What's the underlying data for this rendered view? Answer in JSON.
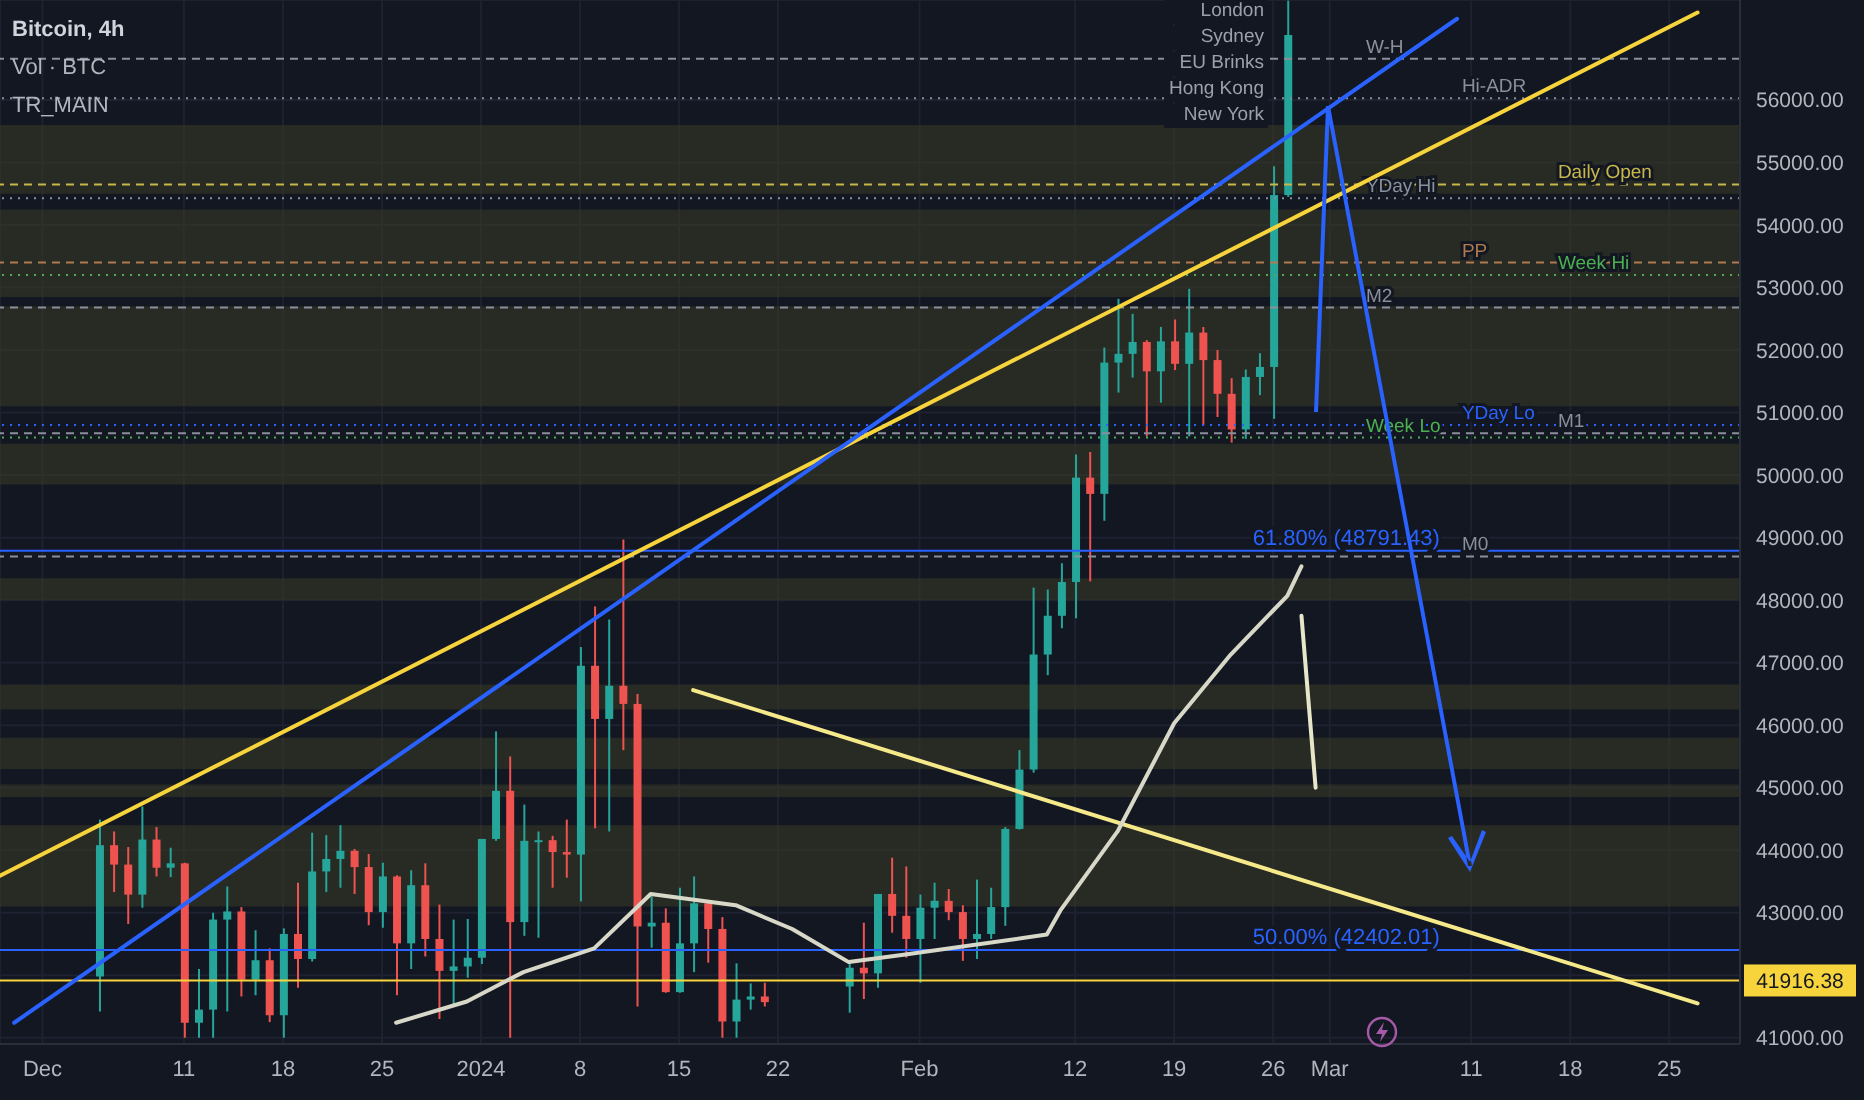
{
  "chart_data": {
    "type": "candlestick",
    "title": "Bitcoin, 4h",
    "annotations": [
      "Vol · BTC",
      "TR_MAIN",
      "London",
      "Sydney",
      "EU Brinks",
      "Hong Kong",
      "New York"
    ],
    "x": [
      "2023-12-05",
      "2023-12-06",
      "2023-12-07",
      "2023-12-08",
      "2023-12-09",
      "2023-12-10",
      "2023-12-11",
      "2023-12-12",
      "2023-12-13",
      "2023-12-14",
      "2023-12-15",
      "2023-12-16",
      "2023-12-17",
      "2023-12-18",
      "2023-12-19",
      "2023-12-20",
      "2023-12-21",
      "2023-12-22",
      "2023-12-23",
      "2023-12-24",
      "2023-12-25",
      "2023-12-26",
      "2023-12-27",
      "2023-12-28",
      "2023-12-29",
      "2023-12-30",
      "2023-12-31",
      "2024-01-01",
      "2024-01-02",
      "2024-01-03",
      "2024-01-04",
      "2024-01-05",
      "2024-01-06",
      "2024-01-07",
      "2024-01-08",
      "2024-01-09",
      "2024-01-10",
      "2024-01-11",
      "2024-01-12",
      "2024-01-13",
      "2024-01-14",
      "2024-01-15",
      "2024-01-16",
      "2024-01-17",
      "2024-01-18",
      "2024-01-19",
      "2024-01-20",
      "2024-01-21",
      "2024-01-27",
      "2024-01-28",
      "2024-01-29",
      "2024-01-30",
      "2024-01-31",
      "2024-02-01",
      "2024-02-02",
      "2024-02-03",
      "2024-02-04",
      "2024-02-05",
      "2024-02-06",
      "2024-02-07",
      "2024-02-08",
      "2024-02-09",
      "2024-02-10",
      "2024-02-11",
      "2024-02-12",
      "2024-02-13",
      "2024-02-14",
      "2024-02-15",
      "2024-02-16",
      "2024-02-17",
      "2024-02-18",
      "2024-02-19",
      "2024-02-20",
      "2024-02-21",
      "2024-02-22",
      "2024-02-23",
      "2024-02-24",
      "2024-02-25",
      "2024-02-26",
      "2024-02-27"
    ],
    "ohlc": [
      [
        41980,
        44490,
        41420,
        44080
      ],
      [
        44080,
        44300,
        43330,
        43770
      ],
      [
        43770,
        44050,
        42820,
        43290
      ],
      [
        43290,
        44700,
        43080,
        44170
      ],
      [
        44170,
        44370,
        43580,
        43720
      ],
      [
        43720,
        44040,
        43570,
        43790
      ],
      [
        43790,
        43800,
        41000,
        41240
      ],
      [
        41240,
        42100,
        41000,
        41450
      ],
      [
        41450,
        43000,
        41000,
        42890
      ],
      [
        42890,
        43420,
        41420,
        43020
      ],
      [
        43020,
        43090,
        41660,
        41930
      ],
      [
        41930,
        42720,
        41680,
        42240
      ],
      [
        42240,
        42430,
        41250,
        41360
      ],
      [
        41360,
        42750,
        41000,
        42660
      ],
      [
        42660,
        43480,
        41800,
        42260
      ],
      [
        42260,
        44280,
        42220,
        43660
      ],
      [
        43660,
        44240,
        43330,
        43860
      ],
      [
        43860,
        44400,
        43400,
        43990
      ],
      [
        43990,
        44020,
        43300,
        43730
      ],
      [
        43730,
        43940,
        42800,
        43010
      ],
      [
        43010,
        43800,
        42760,
        43580
      ],
      [
        43580,
        43600,
        41680,
        42510
      ],
      [
        42510,
        43680,
        42100,
        43440
      ],
      [
        43440,
        43790,
        42300,
        42580
      ],
      [
        42580,
        43130,
        41300,
        42070
      ],
      [
        42070,
        42890,
        41520,
        42140
      ],
      [
        42140,
        42900,
        41960,
        42280
      ],
      [
        42280,
        44180,
        42180,
        44180
      ],
      [
        44180,
        45900,
        44150,
        44950
      ],
      [
        44950,
        45500,
        41000,
        42850
      ],
      [
        42850,
        44730,
        42630,
        44150
      ],
      [
        44150,
        44300,
        42600,
        44160
      ],
      [
        44160,
        44230,
        43400,
        43970
      ],
      [
        43970,
        44490,
        43560,
        43930
      ],
      [
        43930,
        47250,
        43180,
        46950
      ],
      [
        46950,
        47900,
        44350,
        46100
      ],
      [
        46100,
        47690,
        44300,
        46630
      ],
      [
        46630,
        48970,
        45600,
        46340
      ],
      [
        46340,
        46500,
        41500,
        42780
      ],
      [
        42780,
        43260,
        42440,
        42840
      ],
      [
        42840,
        43070,
        41720,
        41730
      ],
      [
        41730,
        43400,
        41720,
        42510
      ],
      [
        42510,
        43580,
        42050,
        43150
      ],
      [
        43150,
        43200,
        42200,
        42740
      ],
      [
        42740,
        42930,
        41000,
        41260
      ],
      [
        41260,
        42190,
        41000,
        41610
      ],
      [
        41610,
        41870,
        41450,
        41660
      ],
      [
        41660,
        41880,
        41500,
        41570
      ],
      [
        41820,
        42200,
        41400,
        42120
      ],
      [
        42120,
        42840,
        41620,
        42030
      ],
      [
        42030,
        43300,
        41800,
        43300
      ],
      [
        43300,
        43880,
        42680,
        42950
      ],
      [
        42950,
        43740,
        42280,
        42580
      ],
      [
        42580,
        43290,
        41880,
        43080
      ],
      [
        43080,
        43480,
        42580,
        43190
      ],
      [
        43190,
        43380,
        42880,
        43010
      ],
      [
        43010,
        43120,
        42230,
        42580
      ],
      [
        42580,
        43530,
        42260,
        42660
      ],
      [
        42660,
        43400,
        42580,
        43090
      ],
      [
        43090,
        44370,
        42790,
        44340
      ],
      [
        44340,
        45600,
        44330,
        45290
      ],
      [
        45290,
        48200,
        45240,
        47130
      ],
      [
        47130,
        48170,
        46800,
        47750
      ],
      [
        47750,
        48590,
        47550,
        48290
      ],
      [
        48290,
        50330,
        47710,
        49960
      ],
      [
        49960,
        50370,
        48300,
        49700
      ],
      [
        49700,
        52040,
        49270,
        51800
      ],
      [
        51800,
        52820,
        51320,
        51940
      ],
      [
        51940,
        52580,
        51560,
        52130
      ],
      [
        52130,
        52160,
        50620,
        51660
      ],
      [
        51660,
        52370,
        51160,
        52140
      ],
      [
        52140,
        52490,
        51680,
        51780
      ],
      [
        51780,
        52980,
        50620,
        52280
      ],
      [
        52280,
        52370,
        50800,
        51840
      ],
      [
        51840,
        52000,
        50930,
        51300
      ],
      [
        51300,
        51550,
        50520,
        50730
      ],
      [
        50730,
        51690,
        50580,
        51570
      ],
      [
        51570,
        51950,
        51280,
        51730
      ],
      [
        51730,
        54940,
        50900,
        54480
      ],
      [
        54480,
        57590,
        54450,
        57040
      ]
    ],
    "colors": [
      "#26a69a",
      "#ef5350",
      "#ef5350",
      "#26a69a",
      "#ef5350",
      "#26a69a",
      "#ef5350",
      "#26a69a",
      "#26a69a",
      "#26a69a",
      "#ef5350",
      "#26a69a",
      "#ef5350",
      "#26a69a",
      "#ef5350",
      "#26a69a",
      "#26a69a",
      "#26a69a",
      "#ef5350",
      "#ef5350",
      "#26a69a",
      "#ef5350",
      "#26a69a",
      "#ef5350",
      "#ef5350",
      "#26a69a",
      "#26a69a",
      "#26a69a",
      "#26a69a",
      "#ef5350",
      "#26a69a",
      "#26a69a",
      "#ef5350",
      "#ef5350",
      "#26a69a",
      "#ef5350",
      "#26a69a",
      "#ef5350",
      "#ef5350",
      "#26a69a",
      "#ef5350",
      "#26a69a",
      "#26a69a",
      "#ef5350",
      "#ef5350",
      "#26a69a",
      "#26a69a",
      "#ef5350",
      "#26a69a",
      "#ef5350",
      "#26a69a",
      "#ef5350",
      "#ef5350",
      "#26a69a",
      "#26a69a",
      "#ef5350",
      "#ef5350",
      "#26a69a",
      "#26a69a",
      "#26a69a",
      "#26a69a",
      "#26a69a",
      "#26a69a",
      "#26a69a",
      "#26a69a",
      "#ef5350",
      "#26a69a",
      "#26a69a",
      "#26a69a",
      "#ef5350",
      "#26a69a",
      "#ef5350",
      "#26a69a",
      "#ef5350",
      "#ef5350",
      "#ef5350",
      "#26a69a",
      "#26a69a",
      "#26a69a",
      "#26a69a"
    ],
    "series": [
      {
        "type": "line",
        "color": "#f7d43c",
        "x": [
          "2023-11-28",
          "2024-03-27"
        ],
        "values": [
          43590,
          57400
        ]
      },
      {
        "type": "line",
        "color": "#2962ff",
        "x": [
          "2023-11-29",
          "2024-03-10"
        ],
        "values": [
          41240,
          57300
        ]
      },
      {
        "type": "line",
        "color": "#f5e98a",
        "x": [
          "2024-01-16",
          "2024-03-27"
        ],
        "values": [
          46560,
          41550
        ]
      },
      {
        "type": "line",
        "color": "#e8e6c8",
        "x": [
          "2024-02-28",
          "2024-02-29"
        ],
        "values": [
          47750,
          45000
        ]
      },
      {
        "type": "line",
        "color": "#d8d8c8",
        "x": [
          "2023-12-26",
          "2023-12-31",
          "2024-01-04",
          "2024-01-09",
          "2024-01-13",
          "2024-01-19",
          "2024-01-23",
          "2024-01-27",
          "2024-01-31",
          "2024-02-10",
          "2024-02-11",
          "2024-02-15",
          "2024-02-19",
          "2024-02-23",
          "2024-02-27",
          "2024-02-28"
        ],
        "values": [
          41240,
          41580,
          42050,
          42430,
          43300,
          43120,
          42740,
          42210,
          42330,
          42650,
          43050,
          44300,
          46030,
          47130,
          48070,
          48540
        ]
      }
    ],
    "ref_lines": [
      {
        "axis": "y",
        "value": 41916.38,
        "label": "41916.38",
        "color": "#f7d43c",
        "line_style": "solid"
      },
      {
        "axis": "y",
        "value": 48791.43,
        "label": "61.80% (48791.43)",
        "color": "#2962ff",
        "line_style": "solid"
      },
      {
        "axis": "y",
        "value": 42402.01,
        "label": "50.00% (42402.01)",
        "color": "#2962ff",
        "line_style": "solid"
      },
      {
        "axis": "y",
        "value": 56660,
        "label": "W-H",
        "color": "#8a8f9c",
        "line_style": "dashed"
      },
      {
        "axis": "y",
        "value": 56030,
        "label": "Hi-ADR",
        "color": "#8a8f9c",
        "line_style": "dotted"
      },
      {
        "axis": "y",
        "value": 54650,
        "label": "Daily Open",
        "color": "#c8b84a",
        "line_style": "dashed"
      },
      {
        "axis": "y",
        "value": 54430,
        "label": "YDay Hi",
        "color": "#8a8f9c",
        "line_style": "dotted"
      },
      {
        "axis": "y",
        "value": 53400,
        "label": "PP",
        "color": "#b07a50",
        "line_style": "dashed"
      },
      {
        "axis": "y",
        "value": 53200,
        "label": "Week Hi",
        "color": "#4caf50",
        "line_style": "dotted"
      },
      {
        "axis": "y",
        "value": 52680,
        "label": "M2",
        "color": "#8a8f9c",
        "line_style": "dashed"
      },
      {
        "axis": "y",
        "value": 50800,
        "label": "YDay Lo",
        "color": "#2962ff",
        "line_style": "dotted"
      },
      {
        "axis": "y",
        "value": 50670,
        "label": "M1",
        "color": "#8a8f9c",
        "line_style": "dashed"
      },
      {
        "axis": "y",
        "value": 50600,
        "label": "Week Lo",
        "color": "#4caf50",
        "line_style": "dotted"
      },
      {
        "axis": "y",
        "value": 48700,
        "label": "M0",
        "color": "#8a8f9c",
        "line_style": "dashed"
      }
    ],
    "bands": [
      {
        "axis": "y",
        "from": 54500,
        "to": 55600,
        "color": "#3b3a27"
      },
      {
        "axis": "y",
        "from": 52850,
        "to": 54250,
        "color": "#3b3a27"
      },
      {
        "axis": "y",
        "from": 51100,
        "to": 52700,
        "color": "#3b3a27"
      },
      {
        "axis": "y",
        "from": 49850,
        "to": 50500,
        "color": "#3b3a27"
      },
      {
        "axis": "y",
        "from": 48000,
        "to": 48350,
        "color": "#3b3a27"
      },
      {
        "axis": "y",
        "from": 46250,
        "to": 46650,
        "color": "#3b3a27"
      },
      {
        "axis": "y",
        "from": 45300,
        "to": 45800,
        "color": "#3b3a27"
      },
      {
        "axis": "y",
        "from": 44850,
        "to": 45050,
        "color": "#3b3a27"
      },
      {
        "axis": "y",
        "from": 43100,
        "to": 44400,
        "color": "#3b3a27"
      }
    ],
    "xlim": [
      "2023-11-28",
      "2024-03-30"
    ],
    "xticks": [
      {
        "value": "2023-12-01",
        "label": "Dec"
      },
      {
        "value": "2023-12-11",
        "label": "11"
      },
      {
        "value": "2023-12-18",
        "label": "18"
      },
      {
        "value": "2023-12-25",
        "label": "25"
      },
      {
        "value": "2024-01-01",
        "label": "2024"
      },
      {
        "value": "2024-01-08",
        "label": "8"
      },
      {
        "value": "2024-01-15",
        "label": "15"
      },
      {
        "value": "2024-01-22",
        "label": "22"
      },
      {
        "value": "2024-02-01",
        "label": "Feb"
      },
      {
        "value": "2024-02-12",
        "label": "12"
      },
      {
        "value": "2024-02-19",
        "label": "19"
      },
      {
        "value": "2024-02-26",
        "label": "26"
      },
      {
        "value": "2024-03-01",
        "label": "Mar"
      },
      {
        "value": "2024-03-11",
        "label": "11"
      },
      {
        "value": "2024-03-18",
        "label": "18"
      },
      {
        "value": "2024-03-25",
        "label": "25"
      }
    ],
    "ylim": [
      40900,
      57600
    ],
    "yticks": [
      {
        "value": 41000,
        "label": "41000.00"
      },
      {
        "value": 42000,
        "label": null
      },
      {
        "value": 43000,
        "label": "43000.00"
      },
      {
        "value": 44000,
        "label": "44000.00"
      },
      {
        "value": 45000,
        "label": "45000.00"
      },
      {
        "value": 46000,
        "label": "46000.00"
      },
      {
        "value": 47000,
        "label": "47000.00"
      },
      {
        "value": 48000,
        "label": "48000.00"
      },
      {
        "value": 49000,
        "label": "49000.00"
      },
      {
        "value": 50000,
        "label": "50000.00"
      },
      {
        "value": 51000,
        "label": "51000.00"
      },
      {
        "value": 52000,
        "label": "52000.00"
      },
      {
        "value": 53000,
        "label": "53000.00"
      },
      {
        "value": 54000,
        "label": "54000.00"
      },
      {
        "value": 55000,
        "label": "55000.00"
      },
      {
        "value": 56000,
        "label": "56000.00"
      }
    ],
    "grid": true
  }
}
